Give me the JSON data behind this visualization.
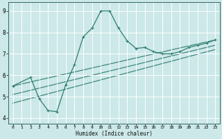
{
  "xlabel": "Humidex (Indice chaleur)",
  "bg_color": "#cce8e8",
  "grid_color": "#aacccc",
  "line_color": "#2e7d72",
  "xlim": [
    -0.5,
    23.5
  ],
  "ylim": [
    3.75,
    9.4
  ],
  "xticks": [
    0,
    1,
    2,
    3,
    4,
    5,
    6,
    7,
    8,
    9,
    10,
    11,
    12,
    13,
    14,
    15,
    16,
    17,
    18,
    19,
    20,
    21,
    22,
    23
  ],
  "yticks": [
    4,
    5,
    6,
    7,
    8,
    9
  ],
  "line1_x": [
    0,
    2,
    3,
    4,
    5,
    6,
    7,
    8,
    9,
    10,
    11,
    12,
    13,
    14,
    15,
    16,
    17,
    18,
    19,
    20,
    21,
    22,
    23
  ],
  "line1_y": [
    5.5,
    5.9,
    4.9,
    4.35,
    4.3,
    5.55,
    6.5,
    7.8,
    8.2,
    9.0,
    9.0,
    8.2,
    7.6,
    7.25,
    7.3,
    7.1,
    7.0,
    7.0,
    7.1,
    7.3,
    7.4,
    7.5,
    7.65
  ],
  "line2_x": [
    0,
    23
  ],
  "line2_y": [
    5.5,
    7.65
  ],
  "line3_x": [
    0,
    23
  ],
  "line3_y": [
    5.1,
    7.4
  ],
  "line4_x": [
    0,
    23
  ],
  "line4_y": [
    4.7,
    7.2
  ]
}
